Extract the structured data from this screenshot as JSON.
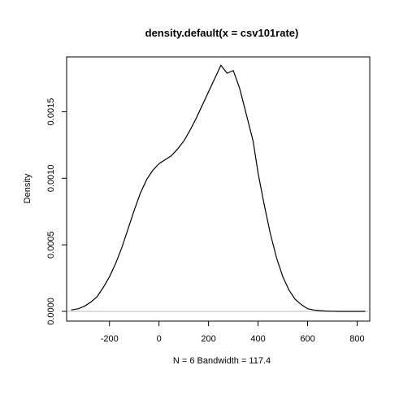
{
  "chart_data": {
    "type": "line",
    "title": "density.default(x = csv101rate)",
    "xlabel": "N = 6   Bandwidth = 117.4",
    "ylabel": "Density",
    "xlim": [
      -373,
      851
    ],
    "ylim": [
      -7.35e-05,
      0.0019124
    ],
    "x_ticks": [
      -200,
      0,
      200,
      400,
      600,
      800
    ],
    "x_tick_labels": [
      "-200",
      "0",
      "200",
      "400",
      "600",
      "800"
    ],
    "y_ticks": [
      0.0,
      0.0005,
      0.001,
      0.0015
    ],
    "y_tick_labels": [
      "0.0000",
      "0.0005",
      "0.0010",
      "0.0015"
    ],
    "grid": false,
    "baseline": {
      "y": 0,
      "color": "#bebebe"
    },
    "series": [
      {
        "color": "#000000",
        "x": [
          -355,
          -325,
          -300,
          -275,
          -250,
          -225,
          -200,
          -175,
          -150,
          -125,
          -100,
          -75,
          -50,
          -25,
          0,
          25,
          50,
          75,
          100,
          125,
          150,
          175,
          200,
          225,
          250,
          275,
          300,
          325,
          350,
          380,
          400,
          425,
          450,
          475,
          500,
          525,
          550,
          575,
          600,
          625,
          650,
          675,
          700,
          725,
          750,
          775,
          800,
          833
        ],
        "y": [
          1e-05,
          2e-05,
          4e-05,
          7e-05,
          0.00011,
          0.00018,
          0.00026,
          0.00036,
          0.00048,
          0.00062,
          0.00076,
          0.00089,
          0.00099,
          0.00106,
          0.00111,
          0.00114,
          0.00117,
          0.00122,
          0.00128,
          0.00136,
          0.00145,
          0.00155,
          0.00165,
          0.00175,
          0.00185,
          0.00179,
          0.00181,
          0.00168,
          0.0015,
          0.00128,
          0.00104,
          0.0008,
          0.00058,
          0.0004,
          0.00026,
          0.00016,
          9e-05,
          5e-05,
          2e-05,
          1e-05,
          5e-06,
          2e-06,
          1e-06,
          0,
          0,
          0,
          0,
          0
        ]
      }
    ]
  }
}
